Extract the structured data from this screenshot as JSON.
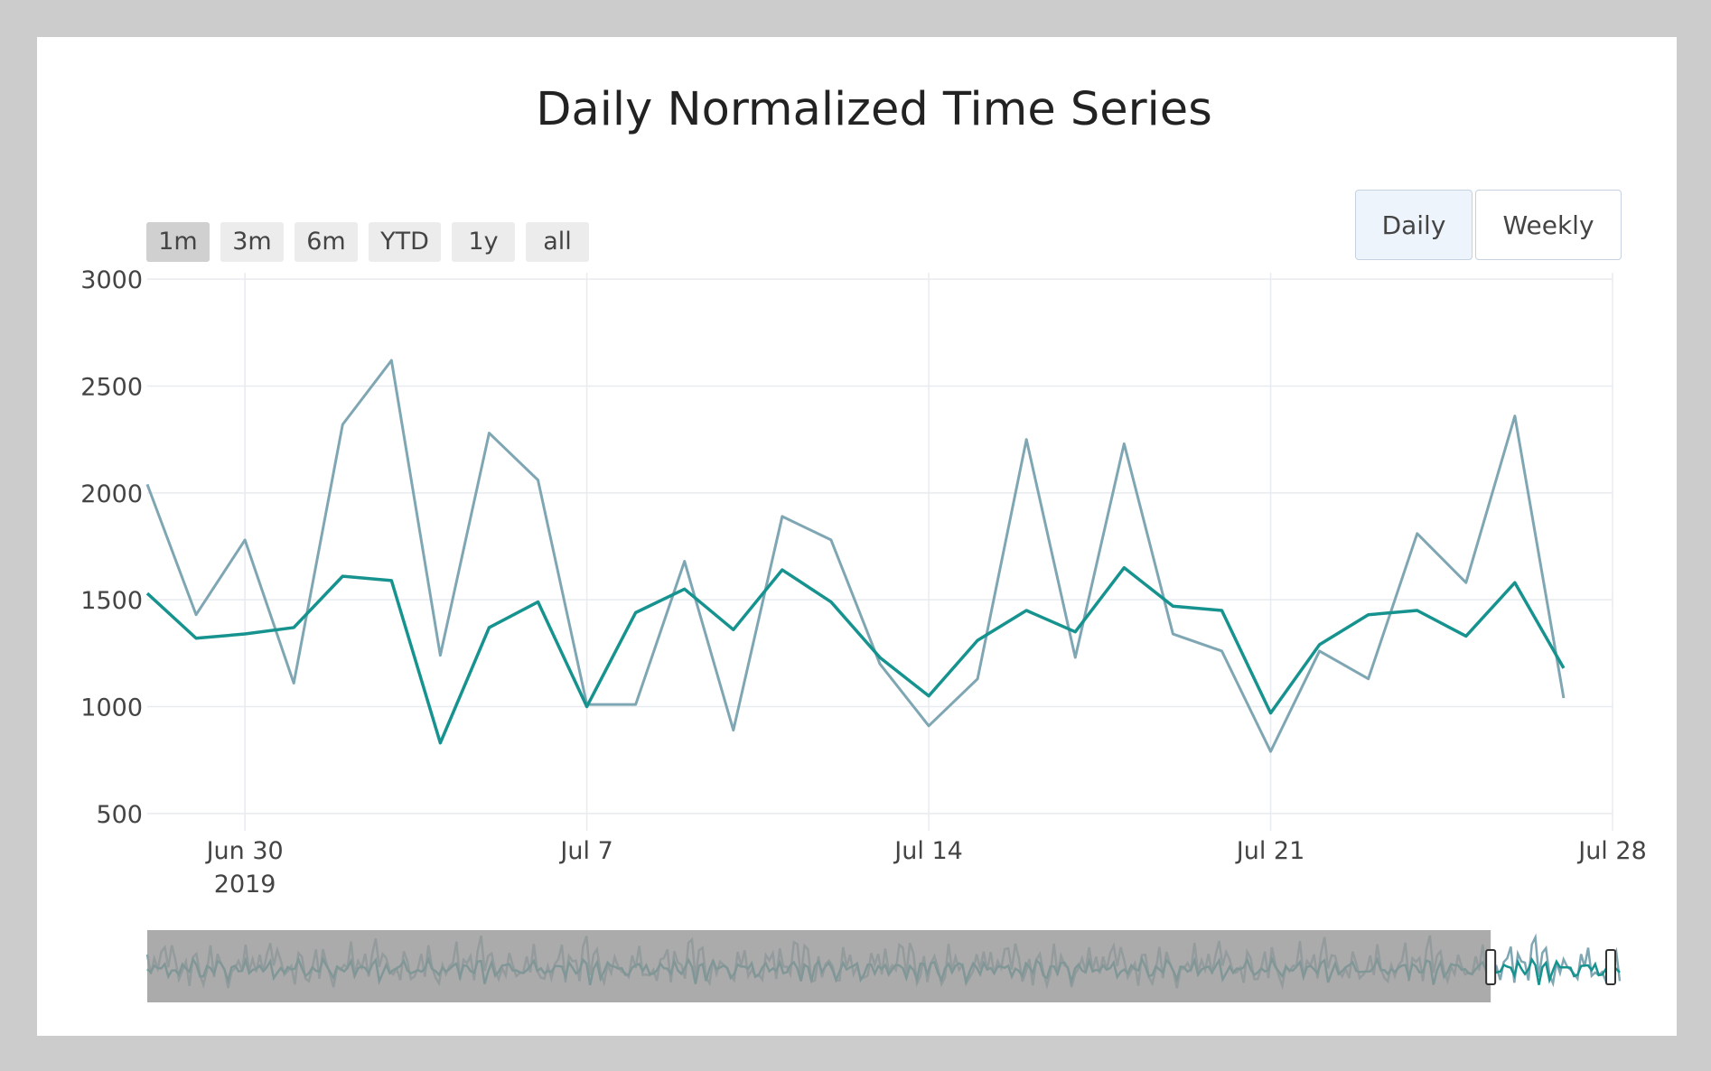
{
  "chart_data": {
    "type": "line",
    "title": "Daily Normalized Time Series",
    "xlabel": "",
    "ylabel": "",
    "x_ticks": [
      {
        "date": "2019-06-30",
        "label": "Jun 30",
        "sublabel": "2019"
      },
      {
        "date": "2019-07-07",
        "label": "Jul 7",
        "sublabel": ""
      },
      {
        "date": "2019-07-14",
        "label": "Jul 14",
        "sublabel": ""
      },
      {
        "date": "2019-07-21",
        "label": "Jul 21",
        "sublabel": ""
      },
      {
        "date": "2019-07-28",
        "label": "Jul 28",
        "sublabel": ""
      }
    ],
    "y_ticks": [
      500,
      1000,
      1500,
      2000,
      2500,
      3000
    ],
    "xlim": [
      "2019-06-28",
      "2019-07-28"
    ],
    "ylim": [
      250,
      3250
    ],
    "grid": true,
    "x": [
      "2019-06-28",
      "2019-06-29",
      "2019-06-30",
      "2019-07-01",
      "2019-07-02",
      "2019-07-03",
      "2019-07-04",
      "2019-07-05",
      "2019-07-06",
      "2019-07-07",
      "2019-07-08",
      "2019-07-09",
      "2019-07-10",
      "2019-07-11",
      "2019-07-12",
      "2019-07-13",
      "2019-07-14",
      "2019-07-15",
      "2019-07-16",
      "2019-07-17",
      "2019-07-18",
      "2019-07-19",
      "2019-07-20",
      "2019-07-21",
      "2019-07-22",
      "2019-07-23",
      "2019-07-24",
      "2019-07-25",
      "2019-07-26",
      "2019-07-27"
    ],
    "series": [
      {
        "color": "#7fa6b3",
        "values": [
          2040,
          1430,
          1780,
          1110,
          2320,
          2620,
          1240,
          2280,
          2060,
          1010,
          1010,
          1680,
          890,
          1890,
          1780,
          1200,
          910,
          1130,
          2250,
          1230,
          2230,
          1340,
          1260,
          790,
          1260,
          1130,
          1810,
          1580,
          2360,
          1040
        ]
      },
      {
        "color": "#17938f",
        "values": [
          1530,
          1320,
          1340,
          1370,
          1610,
          1590,
          830,
          1370,
          1490,
          1000,
          1440,
          1550,
          1360,
          1640,
          1490,
          1230,
          1050,
          1310,
          1450,
          1350,
          1650,
          1470,
          1450,
          970,
          1290,
          1430,
          1450,
          1330,
          1580,
          1180
        ]
      }
    ]
  },
  "range_selector": {
    "buttons": [
      {
        "label": "1m",
        "active": true
      },
      {
        "label": "3m",
        "active": false
      },
      {
        "label": "6m",
        "active": false
      },
      {
        "label": "YTD",
        "active": false
      },
      {
        "label": "1y",
        "active": false
      },
      {
        "label": "all",
        "active": false
      }
    ]
  },
  "aggregation": {
    "buttons": [
      {
        "label": "Daily",
        "active": true
      },
      {
        "label": "Weekly",
        "active": false
      }
    ]
  },
  "range_slider": {
    "selected_fraction": [
      0.918,
      1.0
    ]
  },
  "colors": {
    "series_gray": "#7fa6b3",
    "series_teal": "#17938f",
    "grid": "#e8ebef",
    "slider_mask": "#989898"
  }
}
